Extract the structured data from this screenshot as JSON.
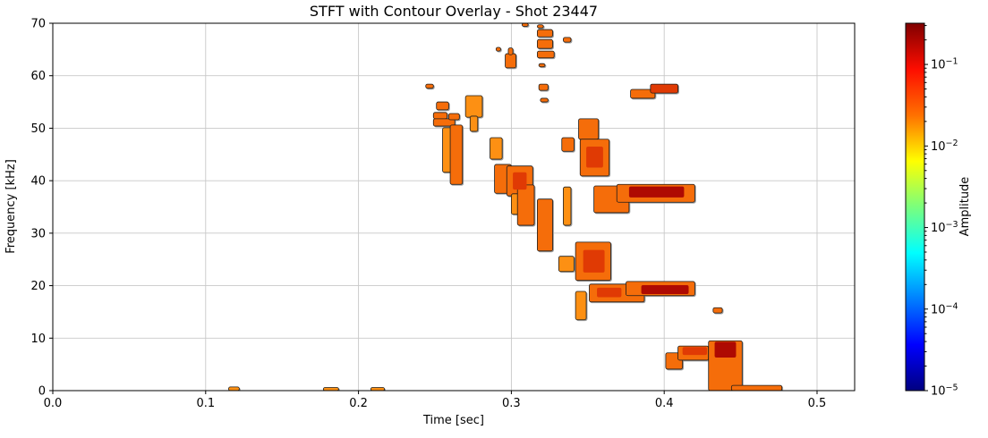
{
  "chart_data": {
    "type": "contour",
    "title": "STFT with Contour Overlay - Shot 23447",
    "xlabel": "Time [sec]",
    "ylabel": "Frequency [kHz]",
    "xlim": [
      0.0,
      0.5246
    ],
    "ylim": [
      0,
      70
    ],
    "xticks": [
      0.0,
      0.1,
      0.2,
      0.3,
      0.4,
      0.5
    ],
    "xtick_labels": [
      "0.0",
      "0.1",
      "0.2",
      "0.3",
      "0.4",
      "0.5"
    ],
    "yticks": [
      0,
      10,
      20,
      30,
      40,
      50,
      60,
      70
    ],
    "ytick_labels": [
      "0",
      "10",
      "20",
      "30",
      "40",
      "50",
      "60",
      "70"
    ],
    "grid": true,
    "grid_color": "#c8c8c8",
    "colorbar": {
      "label": "Amplitude",
      "scale": "log",
      "colormap": "jet",
      "vmin": 1e-05,
      "vmax": 0.32,
      "tick_exponents": [
        -1,
        -2,
        -3,
        -4,
        -5
      ],
      "gradient_stops": [
        [
          0.0,
          "#000080"
        ],
        [
          0.125,
          "#0000ff"
        ],
        [
          0.25,
          "#0080ff"
        ],
        [
          0.375,
          "#00ffff"
        ],
        [
          0.5,
          "#7aff7d"
        ],
        [
          0.625,
          "#ffff00"
        ],
        [
          0.75,
          "#ff7000"
        ],
        [
          0.875,
          "#fd0d00"
        ],
        [
          1.0,
          "#800000"
        ]
      ]
    },
    "palette": {
      "base": "#fd9013",
      "mid": "#f56d0a",
      "hot": "#e03a04",
      "dark": "#ae0a02",
      "outline": "#1c1c1c"
    },
    "blobs": [
      {
        "t": [
          0.307,
          0.311
        ],
        "f": [
          69.4,
          70.0
        ],
        "k": "mid"
      },
      {
        "t": [
          0.317,
          0.321
        ],
        "f": [
          69.1,
          69.7
        ],
        "k": "mid"
      },
      {
        "t": [
          0.317,
          0.327
        ],
        "f": [
          67.4,
          68.8
        ],
        "k": "mid"
      },
      {
        "t": [
          0.317,
          0.327
        ],
        "f": [
          65.2,
          66.9
        ],
        "k": "mid"
      },
      {
        "t": [
          0.317,
          0.328
        ],
        "f": [
          63.4,
          64.7
        ],
        "k": "mid"
      },
      {
        "t": [
          0.334,
          0.339
        ],
        "f": [
          66.4,
          67.3
        ],
        "k": "mid"
      },
      {
        "t": [
          0.296,
          0.303
        ],
        "f": [
          61.5,
          64.2
        ],
        "k": "mid"
      },
      {
        "t": [
          0.298,
          0.301
        ],
        "f": [
          64.0,
          65.3
        ],
        "k": "mid"
      },
      {
        "t": [
          0.29,
          0.293
        ],
        "f": [
          64.7,
          65.4
        ],
        "k": "mid"
      },
      {
        "t": [
          0.318,
          0.322
        ],
        "f": [
          61.7,
          62.3
        ],
        "k": "mid"
      },
      {
        "t": [
          0.318,
          0.324
        ],
        "f": [
          57.2,
          58.4
        ],
        "k": "mid"
      },
      {
        "t": [
          0.319,
          0.324
        ],
        "f": [
          55.0,
          55.7
        ],
        "k": "mid"
      },
      {
        "t": [
          0.244,
          0.249
        ],
        "f": [
          57.6,
          58.4
        ],
        "k": "mid"
      },
      {
        "t": [
          0.27,
          0.281
        ],
        "f": [
          52.1,
          56.2
        ],
        "k": "base"
      },
      {
        "t": [
          0.273,
          0.278
        ],
        "f": [
          49.4,
          52.3
        ],
        "k": "base"
      },
      {
        "t": [
          0.251,
          0.259
        ],
        "f": [
          53.5,
          55.0
        ],
        "k": "mid"
      },
      {
        "t": [
          0.249,
          0.258
        ],
        "f": [
          51.8,
          53.0
        ],
        "k": "mid"
      },
      {
        "t": [
          0.249,
          0.263
        ],
        "f": [
          50.4,
          51.8
        ],
        "k": "mid"
      },
      {
        "t": [
          0.259,
          0.266
        ],
        "f": [
          51.6,
          52.8
        ],
        "k": "mid"
      },
      {
        "t": [
          0.255,
          0.261
        ],
        "f": [
          41.6,
          50.1
        ],
        "k": "base"
      },
      {
        "t": [
          0.26,
          0.268
        ],
        "f": [
          39.3,
          50.6
        ],
        "k": "mid"
      },
      {
        "t": [
          0.286,
          0.294
        ],
        "f": [
          44.1,
          48.2
        ],
        "k": "base"
      },
      {
        "t": [
          0.289,
          0.3
        ],
        "f": [
          37.6,
          43.1
        ],
        "k": "mid"
      },
      {
        "t": [
          0.297,
          0.314
        ],
        "f": [
          37.1,
          42.8
        ],
        "k": "mid"
      },
      {
        "t": [
          0.301,
          0.31
        ],
        "f": [
          38.3,
          41.6
        ],
        "k": "hot",
        "core": true
      },
      {
        "t": [
          0.3,
          0.305
        ],
        "f": [
          33.6,
          37.5
        ],
        "k": "base"
      },
      {
        "t": [
          0.304,
          0.315
        ],
        "f": [
          31.5,
          39.2
        ],
        "k": "mid"
      },
      {
        "t": [
          0.317,
          0.327
        ],
        "f": [
          26.6,
          36.5
        ],
        "k": "mid"
      },
      {
        "t": [
          0.334,
          0.339
        ],
        "f": [
          31.5,
          38.8
        ],
        "k": "base"
      },
      {
        "t": [
          0.333,
          0.341
        ],
        "f": [
          45.6,
          48.2
        ],
        "k": "mid"
      },
      {
        "t": [
          0.344,
          0.357
        ],
        "f": [
          47.9,
          51.8
        ],
        "k": "mid"
      },
      {
        "t": [
          0.345,
          0.364
        ],
        "f": [
          40.9,
          47.9
        ],
        "k": "mid"
      },
      {
        "t": [
          0.349,
          0.36
        ],
        "f": [
          42.5,
          46.5
        ],
        "k": "hot",
        "core": true
      },
      {
        "t": [
          0.342,
          0.365
        ],
        "f": [
          21.0,
          28.3
        ],
        "k": "mid"
      },
      {
        "t": [
          0.347,
          0.361
        ],
        "f": [
          22.5,
          26.8
        ],
        "k": "hot",
        "core": true
      },
      {
        "t": [
          0.331,
          0.341
        ],
        "f": [
          22.7,
          25.6
        ],
        "k": "base"
      },
      {
        "t": [
          0.342,
          0.349
        ],
        "f": [
          13.5,
          18.9
        ],
        "k": "base"
      },
      {
        "t": [
          0.351,
          0.387
        ],
        "f": [
          16.9,
          20.3
        ],
        "k": "mid"
      },
      {
        "t": [
          0.356,
          0.372
        ],
        "f": [
          17.8,
          19.6
        ],
        "k": "hot",
        "core": true
      },
      {
        "t": [
          0.375,
          0.42
        ],
        "f": [
          18.1,
          20.8
        ],
        "k": "mid"
      },
      {
        "t": [
          0.385,
          0.416
        ],
        "f": [
          18.4,
          20.1
        ],
        "k": "dark",
        "core": true
      },
      {
        "t": [
          0.354,
          0.377
        ],
        "f": [
          33.9,
          39.0
        ],
        "k": "mid"
      },
      {
        "t": [
          0.369,
          0.42
        ],
        "f": [
          35.9,
          39.3
        ],
        "k": "mid"
      },
      {
        "t": [
          0.377,
          0.413
        ],
        "f": [
          36.8,
          38.9
        ],
        "k": "dark",
        "core": true
      },
      {
        "t": [
          0.378,
          0.394
        ],
        "f": [
          55.7,
          57.4
        ],
        "k": "mid"
      },
      {
        "t": [
          0.391,
          0.409
        ],
        "f": [
          56.7,
          58.4
        ],
        "k": "hot"
      },
      {
        "t": [
          0.432,
          0.438
        ],
        "f": [
          14.8,
          15.8
        ],
        "k": "mid"
      },
      {
        "t": [
          0.401,
          0.412
        ],
        "f": [
          4.1,
          7.2
        ],
        "k": "mid"
      },
      {
        "t": [
          0.409,
          0.429
        ],
        "f": [
          5.8,
          8.5
        ],
        "k": "mid"
      },
      {
        "t": [
          0.412,
          0.428
        ],
        "f": [
          6.8,
          8.3
        ],
        "k": "hot",
        "core": true
      },
      {
        "t": [
          0.429,
          0.451
        ],
        "f": [
          0.0,
          9.5
        ],
        "k": "mid"
      },
      {
        "t": [
          0.433,
          0.447
        ],
        "f": [
          6.3,
          9.3
        ],
        "k": "dark",
        "core": true
      },
      {
        "t": [
          0.444,
          0.477
        ],
        "f": [
          0.0,
          1.0
        ],
        "k": "mid"
      },
      {
        "t": [
          0.115,
          0.122
        ],
        "f": [
          0.0,
          0.7
        ],
        "k": "base"
      },
      {
        "t": [
          0.177,
          0.187
        ],
        "f": [
          0.0,
          0.6
        ],
        "k": "base"
      },
      {
        "t": [
          0.208,
          0.217
        ],
        "f": [
          0.0,
          0.6
        ],
        "k": "base"
      }
    ]
  }
}
